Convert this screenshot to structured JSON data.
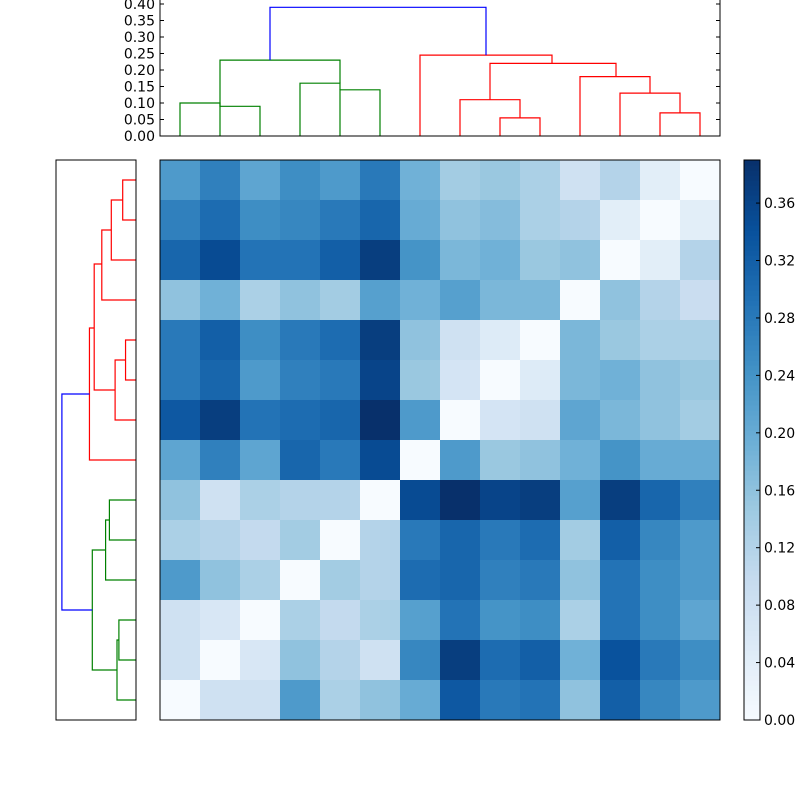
{
  "chart_data": [
    {
      "type": "dendrogram",
      "orientation": "top",
      "ylim": [
        0.0,
        0.4
      ],
      "yticks": [
        "0.00",
        "0.05",
        "0.10",
        "0.15",
        "0.20",
        "0.25",
        "0.30",
        "0.35",
        "0.40"
      ],
      "colors": {
        "left_cluster": "#008000",
        "right_cluster": "#ff0000",
        "root": "#0000ff"
      },
      "links": [
        {
          "x1": 0.5,
          "x2": 1.5,
          "h": 0.1,
          "c": "left_cluster",
          "b1": 0.0,
          "b2": 0.0
        },
        {
          "x1": 1.5,
          "x2": 2.5,
          "h": 0.09,
          "c": "left_cluster",
          "b1": 0.1,
          "b2": 0.0
        },
        {
          "x1": 4.5,
          "x2": 5.5,
          "h": 0.14,
          "c": "left_cluster",
          "b1": 0.0,
          "b2": 0.0
        },
        {
          "x1": 3.5,
          "x2": 4.5,
          "h": 0.16,
          "c": "left_cluster",
          "b1": 0.0,
          "b2": 0.14
        },
        {
          "x1": 1.5,
          "x2": 4.5,
          "h": 0.23,
          "c": "left_cluster",
          "b1": 0.1,
          "b2": 0.16
        },
        {
          "x1": 8.5,
          "x2": 9.5,
          "h": 0.055,
          "c": "right_cluster",
          "b1": 0.0,
          "b2": 0.0
        },
        {
          "x1": 7.5,
          "x2": 9.0,
          "h": 0.11,
          "c": "right_cluster",
          "b1": 0.0,
          "b2": 0.055
        },
        {
          "x1": 12.5,
          "x2": 13.5,
          "h": 0.07,
          "c": "right_cluster",
          "b1": 0.0,
          "b2": 0.0
        },
        {
          "x1": 11.5,
          "x2": 13.0,
          "h": 0.13,
          "c": "right_cluster",
          "b1": 0.0,
          "b2": 0.07
        },
        {
          "x1": 10.5,
          "x2": 12.25,
          "h": 0.18,
          "c": "right_cluster",
          "b1": 0.0,
          "b2": 0.13
        },
        {
          "x1": 8.25,
          "x2": 11.4,
          "h": 0.22,
          "c": "right_cluster",
          "b1": 0.11,
          "b2": 0.18
        },
        {
          "x1": 6.5,
          "x2": 9.8,
          "h": 0.245,
          "c": "right_cluster",
          "b1": 0.0,
          "b2": 0.22
        },
        {
          "x1": 2.75,
          "x2": 8.15,
          "h": 0.39,
          "c": "root",
          "b1": 0.23,
          "b2": 0.245
        }
      ]
    },
    {
      "type": "dendrogram",
      "orientation": "left",
      "colors": {
        "upper_cluster": "#ff0000",
        "lower_cluster": "#008000",
        "root": "#0000ff"
      },
      "links": [
        {
          "r1": 0.5,
          "r2": 1.5,
          "h": 0.07,
          "c": "upper_cluster",
          "b1": 0.0,
          "b2": 0.0
        },
        {
          "r1": 1.0,
          "r2": 2.5,
          "h": 0.13,
          "c": "upper_cluster",
          "b1": 0.07,
          "b2": 0.0
        },
        {
          "r1": 1.75,
          "r2": 3.5,
          "h": 0.18,
          "c": "upper_cluster",
          "b1": 0.13,
          "b2": 0.0
        },
        {
          "r1": 4.5,
          "r2": 5.5,
          "h": 0.055,
          "c": "upper_cluster",
          "b1": 0.0,
          "b2": 0.0
        },
        {
          "r1": 5.0,
          "r2": 6.5,
          "h": 0.11,
          "c": "upper_cluster",
          "b1": 0.055,
          "b2": 0.0
        },
        {
          "r1": 2.6,
          "r2": 5.75,
          "h": 0.22,
          "c": "upper_cluster",
          "b1": 0.18,
          "b2": 0.11
        },
        {
          "r1": 4.2,
          "r2": 7.5,
          "h": 0.245,
          "c": "upper_cluster",
          "b1": 0.22,
          "b2": 0.0
        },
        {
          "r1": 8.5,
          "r2": 9.5,
          "h": 0.14,
          "c": "lower_cluster",
          "b1": 0.0,
          "b2": 0.0
        },
        {
          "r1": 9.0,
          "r2": 10.5,
          "h": 0.16,
          "c": "lower_cluster",
          "b1": 0.14,
          "b2": 0.0
        },
        {
          "r1": 11.5,
          "r2": 12.5,
          "h": 0.09,
          "c": "lower_cluster",
          "b1": 0.0,
          "b2": 0.0
        },
        {
          "r1": 12.0,
          "r2": 13.5,
          "h": 0.1,
          "c": "lower_cluster",
          "b1": 0.09,
          "b2": 0.0
        },
        {
          "r1": 9.75,
          "r2": 12.75,
          "h": 0.23,
          "c": "lower_cluster",
          "b1": 0.16,
          "b2": 0.1
        },
        {
          "r1": 5.85,
          "r2": 11.25,
          "h": 0.39,
          "c": "root",
          "b1": 0.245,
          "b2": 0.23
        }
      ]
    },
    {
      "type": "heatmap",
      "rows": 14,
      "cols": 14,
      "vmin": 0.0,
      "vmax": 0.39,
      "cmap": "Blues",
      "values": [
        [
          0.23,
          0.27,
          0.21,
          0.25,
          0.23,
          0.28,
          0.19,
          0.14,
          0.15,
          0.13,
          0.08,
          0.12,
          0.04,
          0.0
        ],
        [
          0.27,
          0.3,
          0.25,
          0.26,
          0.28,
          0.31,
          0.2,
          0.16,
          0.17,
          0.13,
          0.12,
          0.04,
          0.0,
          0.04
        ],
        [
          0.31,
          0.35,
          0.29,
          0.29,
          0.32,
          0.37,
          0.24,
          0.18,
          0.19,
          0.15,
          0.16,
          0.0,
          0.04,
          0.12
        ],
        [
          0.16,
          0.19,
          0.13,
          0.16,
          0.14,
          0.22,
          0.19,
          0.22,
          0.18,
          0.18,
          0.0,
          0.16,
          0.12,
          0.09
        ],
        [
          0.28,
          0.32,
          0.25,
          0.28,
          0.3,
          0.37,
          0.16,
          0.08,
          0.05,
          0.0,
          0.18,
          0.15,
          0.13,
          0.13
        ],
        [
          0.28,
          0.31,
          0.23,
          0.27,
          0.28,
          0.36,
          0.15,
          0.07,
          0.0,
          0.05,
          0.18,
          0.19,
          0.16,
          0.15
        ],
        [
          0.33,
          0.37,
          0.29,
          0.3,
          0.31,
          0.39,
          0.23,
          0.0,
          0.07,
          0.08,
          0.21,
          0.18,
          0.16,
          0.14
        ],
        [
          0.21,
          0.27,
          0.21,
          0.31,
          0.28,
          0.35,
          0.0,
          0.23,
          0.15,
          0.16,
          0.19,
          0.24,
          0.2,
          0.2
        ],
        [
          0.16,
          0.08,
          0.13,
          0.12,
          0.12,
          0.0,
          0.35,
          0.39,
          0.36,
          0.37,
          0.22,
          0.37,
          0.31,
          0.27
        ],
        [
          0.13,
          0.12,
          0.1,
          0.14,
          0.0,
          0.12,
          0.28,
          0.31,
          0.28,
          0.3,
          0.14,
          0.32,
          0.26,
          0.23
        ],
        [
          0.23,
          0.16,
          0.13,
          0.0,
          0.14,
          0.12,
          0.3,
          0.31,
          0.27,
          0.28,
          0.16,
          0.29,
          0.25,
          0.23
        ],
        [
          0.08,
          0.06,
          0.0,
          0.13,
          0.1,
          0.13,
          0.22,
          0.29,
          0.24,
          0.25,
          0.13,
          0.29,
          0.25,
          0.21
        ],
        [
          0.08,
          0.0,
          0.06,
          0.16,
          0.12,
          0.08,
          0.26,
          0.37,
          0.3,
          0.32,
          0.19,
          0.34,
          0.28,
          0.25
        ],
        [
          0.0,
          0.08,
          0.08,
          0.23,
          0.13,
          0.16,
          0.2,
          0.33,
          0.28,
          0.29,
          0.16,
          0.32,
          0.26,
          0.23
        ]
      ]
    },
    {
      "type": "colorbar",
      "vmin": 0.0,
      "vmax": 0.39,
      "ticks": [
        "0.00",
        "0.04",
        "0.08",
        "0.12",
        "0.16",
        "0.20",
        "0.24",
        "0.28",
        "0.32",
        "0.36"
      ]
    }
  ]
}
